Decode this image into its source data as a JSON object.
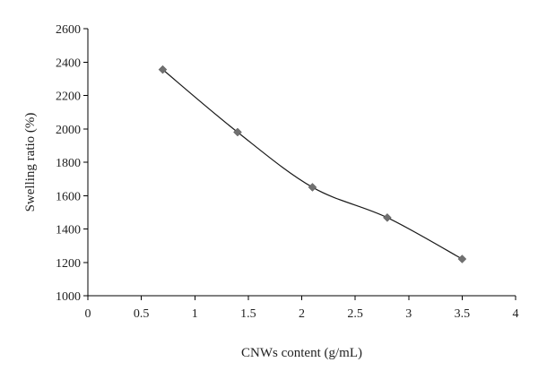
{
  "chart_data": {
    "type": "line",
    "xlabel": "CNWs content (g/mL)",
    "ylabel": "Swelling ratio (%)",
    "xlim": [
      0,
      4
    ],
    "ylim": [
      1000,
      2600
    ],
    "xticks": [
      "0",
      "0.5",
      "1",
      "1.5",
      "2",
      "2.5",
      "3",
      "3.5",
      "4"
    ],
    "yticks": [
      "1000",
      "1200",
      "1400",
      "1600",
      "1800",
      "2000",
      "2200",
      "2400",
      "2600"
    ],
    "grid": false,
    "marker": "diamond",
    "x": [
      0.7,
      1.4,
      2.1,
      2.8,
      3.5
    ],
    "series": [
      {
        "values": [
          2355,
          1980,
          1650,
          1468,
          1220
        ]
      }
    ],
    "colors": {
      "line": "#1a1a1a",
      "marker": "#707070"
    }
  }
}
